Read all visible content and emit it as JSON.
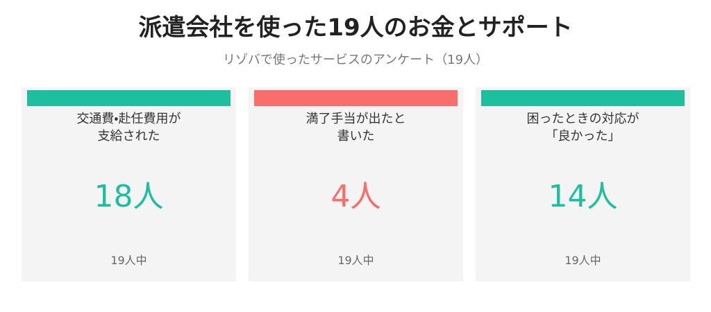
{
  "header": {
    "title": "派遣会社を使った19人のお金とサポート",
    "subtitle": "リゾバで使ったサービスのアンケート（19人）"
  },
  "cards": [
    {
      "label_lines": [
        "交通費・赴任費用が",
        "支給された"
      ],
      "value": "18人",
      "total": "19人中",
      "color": "#1dbf9f"
    },
    {
      "label_lines": [
        "満了手当が出たと",
        "書いた"
      ],
      "value": "4人",
      "total": "19人中",
      "color": "#f96d6d"
    },
    {
      "label_lines": [
        "困ったときの対応が",
        "「良かった」"
      ],
      "value": "14人",
      "total": "19人中",
      "color": "#1dbf9f"
    }
  ]
}
